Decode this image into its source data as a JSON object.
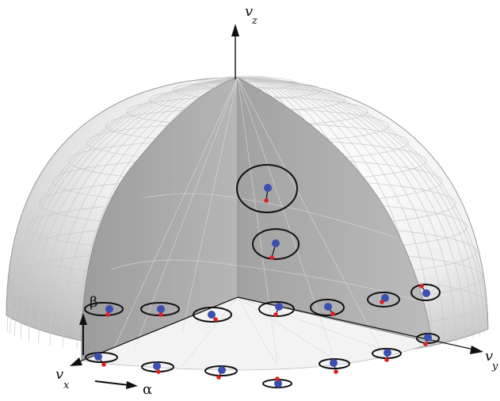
{
  "labels": {
    "vz": "v",
    "vz_sub": "z",
    "vx": "v",
    "vx_sub": "x",
    "vy": "v",
    "vy_sub": "y",
    "alpha": "α",
    "beta": "β"
  },
  "colors": {
    "sphere_fill": "#ececec",
    "sphere_grid": "#c4c4c4",
    "cut_face": "#a9a9a9",
    "base_plane": "#f1f1f1",
    "ellipse": "#111111",
    "blue_dot": "#3b4fb0",
    "red_dot": "#e02020"
  }
}
